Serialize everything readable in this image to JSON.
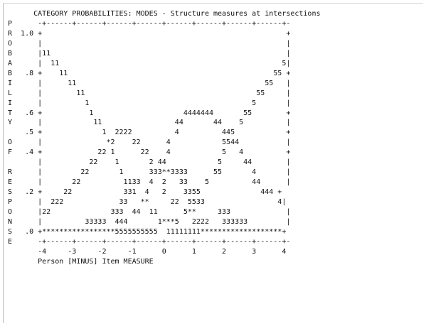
{
  "chart_data": {
    "type": "line",
    "title": "CATEGORY PROBABILITIES: MODES - Structure measures at intersections",
    "ylabel": "PROBABILITY OF RESPONSE",
    "xlabel": "Person [MINUS] Item MEASURE",
    "ylim": [
      0,
      1
    ],
    "xlim": [
      -4,
      4
    ],
    "x_ticks": [
      "-4",
      "-3",
      "-2",
      "-1",
      "0",
      "1",
      "2",
      "3",
      "4"
    ],
    "y_ticks": [
      "1.0",
      ".8",
      ".6",
      ".5",
      ".4",
      ".2",
      ".0"
    ],
    "marker_symbols": [
      "1",
      "2",
      "3",
      "4",
      "5",
      "*"
    ],
    "series": [
      {
        "name": "1",
        "x": [
          -4,
          -3,
          -2,
          -1,
          0,
          1
        ],
        "y": [
          0.96,
          0.8,
          0.54,
          0.18,
          0.02,
          0.0
        ]
      },
      {
        "name": "2",
        "x": [
          -4,
          -3,
          -2,
          -1,
          0,
          1,
          2
        ],
        "y": [
          0.04,
          0.2,
          0.42,
          0.5,
          0.3,
          0.06,
          0.0
        ]
      },
      {
        "name": "3",
        "x": [
          -3,
          -2,
          -1,
          0,
          1,
          2,
          3
        ],
        "y": [
          0.0,
          0.04,
          0.22,
          0.34,
          0.24,
          0.08,
          0.0
        ]
      },
      {
        "name": "4",
        "x": [
          -2,
          -1,
          0,
          1,
          2,
          3,
          4
        ],
        "y": [
          0.0,
          0.06,
          0.28,
          0.62,
          0.48,
          0.26,
          0.06
        ]
      },
      {
        "name": "5",
        "x": [
          -1,
          0,
          1,
          2,
          3,
          4
        ],
        "y": [
          0.0,
          0.0,
          0.04,
          0.2,
          0.6,
          0.9
        ]
      }
    ]
  },
  "plot_text": {
    "rows": [
      "      CATEGORY PROBABILITIES: MODES - Structure measures at intersections",
      "P      -+------+------+------+------+------+------+------+------+-",
      "R  1.0 +                                                         +",
      "O      |                                                         |",
      "B      |11                                                       |",
      "A      |  11                                                    5|",
      "B   .8 +    11                                                55 +",
      "I      |      11                                            55   |",
      "L      |        11                                        55     |",
      "I      |          1                                      5       |",
      "T   .6 +           1                     4444444       55        +",
      "Y      |            11                 44       44    5          |",
      "    .5 +              1  2222          4          445            +",
      "O      |               *2    22      4            5544           |",
      "F   .4 +             22 1      22    4            5   4          +",
      "       |           22    1       2 44            5     44        |",
      "R      |         22       1      333**3333      55       4       |",
      "E      |       22          1133  4  2   33    5          44      |",
      "S   .2 +     22            331  4   2    3355              444 +",
      "P      |  222             33   **     22  5533                 4|",
      "O      |22              333  44  11      5**     333             |",
      "N      |          33333  444       1***5   2222   333333         |",
      "S   .0 +*****************5555555555  11111111*******************+",
      "E      -+------+------+------+------+------+------+------+------+-",
      "       -4     -3     -2     -1      0      1      2      3      4",
      "       Person [MINUS] Item MEASURE"
    ]
  }
}
